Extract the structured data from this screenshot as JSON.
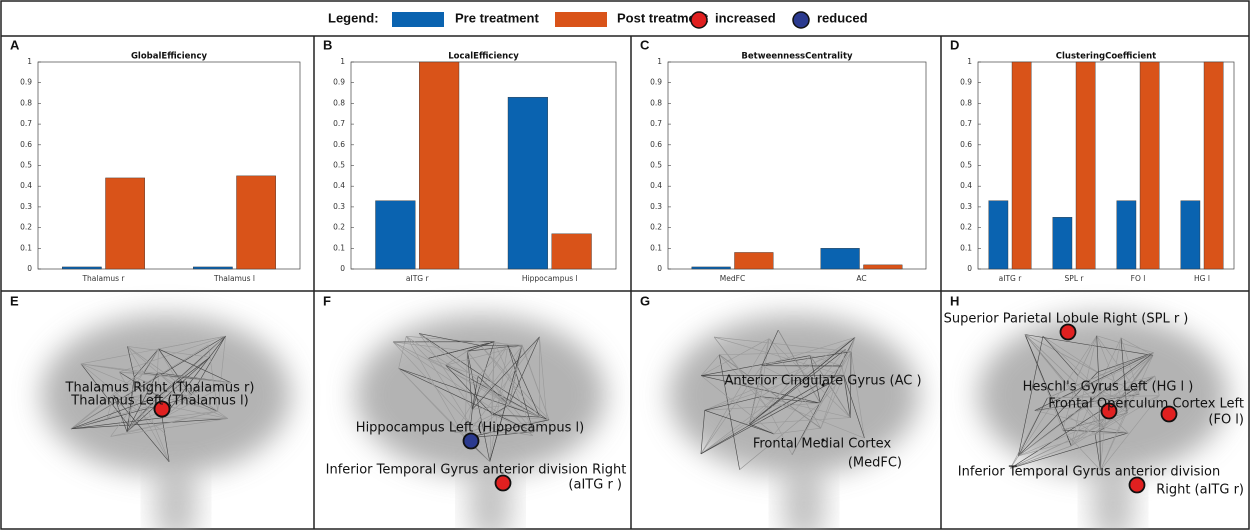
{
  "legend": {
    "title": "Legend:",
    "markers": [
      {
        "label": "increased",
        "color": "#e02020"
      },
      {
        "label": "reduced",
        "color": "#2b3a8f"
      }
    ]
  },
  "chart_data": [
    {
      "type": "bar",
      "panel": "A",
      "title": "GlobalEfficiency",
      "categories": [
        "Thalamus r",
        "Thalamus l"
      ],
      "series": [
        {
          "name": "Pre treatment",
          "color": "#0a63b0",
          "values": [
            0.01,
            0.01
          ]
        },
        {
          "name": "Post treatment",
          "color": "#d95319",
          "values": [
            0.44,
            0.45
          ]
        }
      ],
      "ylim": [
        0,
        1
      ],
      "yticks": [
        0,
        0.1,
        0.2,
        0.3,
        0.4,
        0.5,
        0.6,
        0.7,
        0.8,
        0.9,
        1
      ]
    },
    {
      "type": "bar",
      "panel": "B",
      "title": "LocalEfficiency",
      "categories": [
        "aITG r",
        "Hippocampus l"
      ],
      "series": [
        {
          "name": "Pre treatment",
          "color": "#0a63b0",
          "values": [
            0.33,
            0.83
          ]
        },
        {
          "name": "Post treatment",
          "color": "#d95319",
          "values": [
            1,
            0.17
          ]
        }
      ],
      "ylim": [
        0,
        1
      ],
      "yticks": [
        0,
        0.1,
        0.2,
        0.3,
        0.4,
        0.5,
        0.6,
        0.7,
        0.8,
        0.9,
        1
      ]
    },
    {
      "type": "bar",
      "panel": "C",
      "title": "BetweennessCentrality",
      "categories": [
        "MedFC",
        "AC"
      ],
      "series": [
        {
          "name": "Pre treatment",
          "color": "#0a63b0",
          "values": [
            0.01,
            0.1
          ]
        },
        {
          "name": "Post treatment",
          "color": "#d95319",
          "values": [
            0.08,
            0.02
          ]
        }
      ],
      "ylim": [
        0,
        1
      ],
      "yticks": [
        0,
        0.1,
        0.2,
        0.3,
        0.4,
        0.5,
        0.6,
        0.7,
        0.8,
        0.9,
        1
      ]
    },
    {
      "type": "bar",
      "panel": "D",
      "title": "ClusteringCoefficient",
      "categories": [
        "aITG r",
        "SPL r",
        "FO l",
        "HG l"
      ],
      "series": [
        {
          "name": "Pre treatment",
          "color": "#0a63b0",
          "values": [
            0.33,
            0.25,
            0.33,
            0.33
          ]
        },
        {
          "name": "Post treatment",
          "color": "#d95319",
          "values": [
            1,
            1,
            1,
            1
          ]
        }
      ],
      "ylim": [
        0,
        1
      ],
      "yticks": [
        0,
        0.1,
        0.2,
        0.3,
        0.4,
        0.5,
        0.6,
        0.7,
        0.8,
        0.9,
        1
      ]
    }
  ],
  "brain_panels": [
    {
      "panel": "E",
      "nodes": [
        {
          "lines": [
            "Thalamus Right (Thalamus r)"
          ],
          "marker": 0
        },
        {
          "lines": [
            "Thalamus Left (Thalamus l)"
          ],
          "marker": 0
        }
      ]
    },
    {
      "panel": "F",
      "nodes": [
        {
          "lines": [
            "Hippocampus Left (Hippocampus l)"
          ],
          "marker": 1
        },
        {
          "lines": [
            "Inferior Temporal Gyrus anterior division Right",
            "(aITG r )"
          ],
          "marker": 0
        }
      ]
    },
    {
      "panel": "G",
      "nodes": [
        {
          "lines": [
            "Anterior Cingulate Gyrus (AC )"
          ],
          "marker": null
        },
        {
          "lines": [
            "Frontal Medial Cortex",
            "(MedFC)"
          ],
          "marker": null
        }
      ]
    },
    {
      "panel": "H",
      "nodes": [
        {
          "lines": [
            "Superior Parietal Lobule Right (SPL r )"
          ],
          "marker": 0
        },
        {
          "lines": [
            "Heschl's Gyrus Left (HG l )"
          ],
          "marker": 0
        },
        {
          "lines": [
            "Frontal Operculum Cortex Left",
            "(FO l)"
          ],
          "marker": 0
        },
        {
          "lines": [
            "Inferior Temporal Gyrus anterior division",
            "Right (aITG r)"
          ],
          "marker": 0
        }
      ]
    }
  ]
}
